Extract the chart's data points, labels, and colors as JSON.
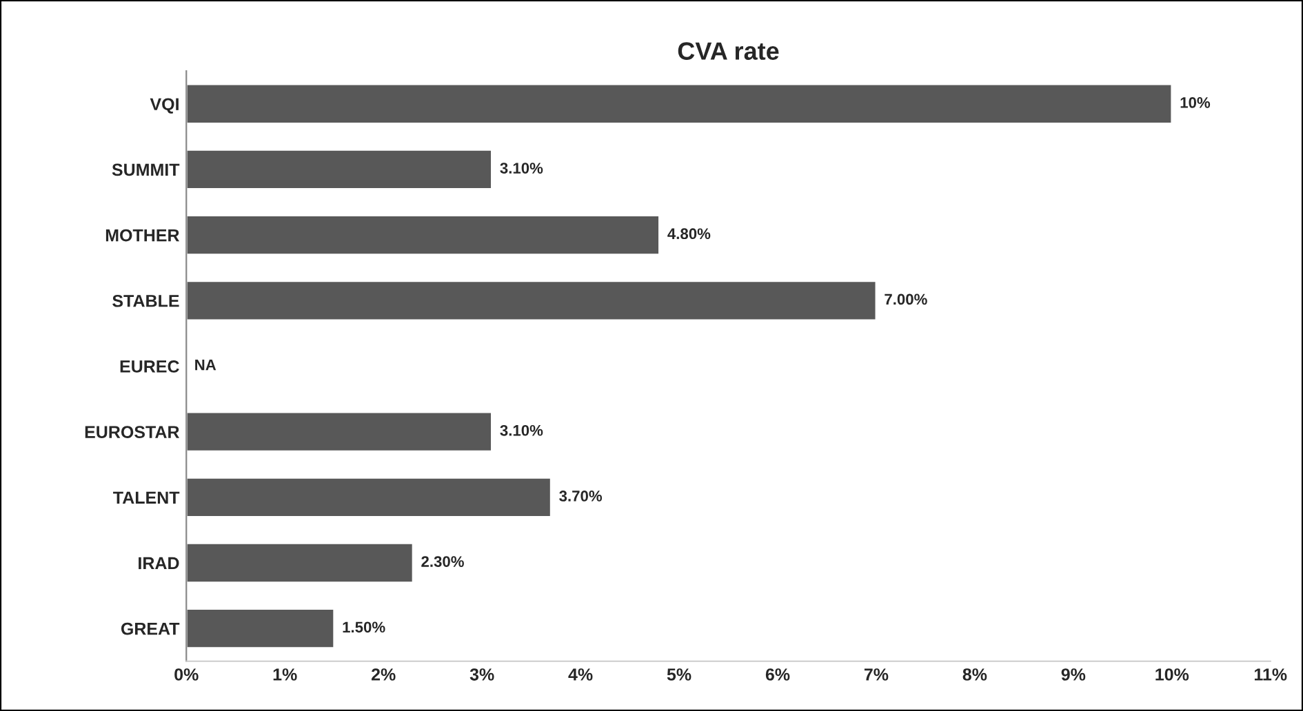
{
  "chart_data": {
    "type": "bar",
    "orientation": "horizontal",
    "title": "CVA rate",
    "categories": [
      "VQI",
      "SUMMIT",
      "MOTHER",
      "STABLE",
      "EUREC",
      "EUROSTAR",
      "TALENT",
      "IRAD",
      "GREAT"
    ],
    "values": [
      10,
      3.1,
      4.8,
      7.0,
      null,
      3.1,
      3.7,
      2.3,
      1.5
    ],
    "value_labels": [
      "10%",
      "3.10%",
      "4.80%",
      "7.00%",
      "NA",
      "3.10%",
      "3.70%",
      "2.30%",
      "1.50%"
    ],
    "color": "#585858",
    "xlim": [
      0,
      11
    ],
    "xticks": [
      {
        "value": 0,
        "label": "0%"
      },
      {
        "value": 1,
        "label": "1%"
      },
      {
        "value": 2,
        "label": "2%"
      },
      {
        "value": 3,
        "label": "3%"
      },
      {
        "value": 4,
        "label": "4%"
      },
      {
        "value": 5,
        "label": "5%"
      },
      {
        "value": 6,
        "label": "6%"
      },
      {
        "value": 7,
        "label": "7%"
      },
      {
        "value": 8,
        "label": "8%"
      },
      {
        "value": 9,
        "label": "9%"
      },
      {
        "value": 10,
        "label": "10%"
      },
      {
        "value": 11,
        "label": "11%"
      }
    ],
    "grid": false,
    "legend": false
  }
}
